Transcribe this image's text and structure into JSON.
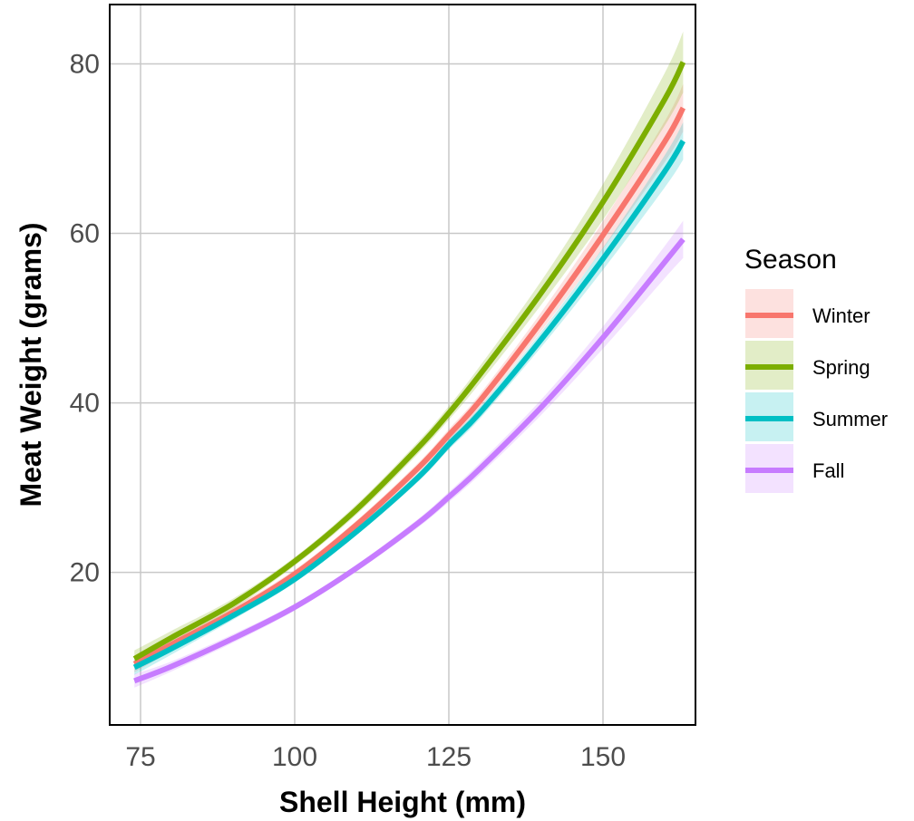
{
  "chart_data": {
    "type": "line",
    "xlabel": "Shell Height (mm)",
    "ylabel": "Meat Weight (grams)",
    "xlim": [
      70,
      165
    ],
    "ylim": [
      2,
      87
    ],
    "xticks": [
      "75",
      "100",
      "125",
      "150"
    ],
    "yticks": [
      "20",
      "40",
      "60",
      "80"
    ],
    "grid": true,
    "legend": {
      "title": "Season",
      "position": "right"
    },
    "x": [
      74,
      80,
      90,
      100,
      110,
      120,
      125,
      130,
      140,
      150,
      160,
      163
    ],
    "series": [
      {
        "name": "Winter",
        "color": "#F8766D",
        "fill": "#F8766D",
        "values": [
          9.2,
          11.5,
          15.3,
          19.8,
          25.6,
          32.3,
          36.2,
          40.2,
          49.6,
          59.8,
          70.8,
          74.8
        ],
        "ci": [
          1.0,
          0.8,
          0.6,
          0.5,
          0.5,
          0.6,
          0.7,
          0.8,
          1.1,
          1.6,
          2.4,
          2.8
        ]
      },
      {
        "name": "Spring",
        "color": "#7CAE00",
        "fill": "#7CAE00",
        "values": [
          9.8,
          12.3,
          16.3,
          21.3,
          27.4,
          34.7,
          38.8,
          43.3,
          53.0,
          63.7,
          75.8,
          80.2
        ],
        "ci": [
          1.0,
          0.8,
          0.6,
          0.5,
          0.6,
          0.7,
          0.8,
          1.0,
          1.4,
          2.1,
          3.1,
          3.6
        ]
      },
      {
        "name": "Summer",
        "color": "#00BFC4",
        "fill": "#00BFC4",
        "values": [
          8.8,
          11.0,
          14.9,
          19.2,
          24.8,
          31.2,
          35.1,
          38.8,
          47.5,
          57.0,
          67.3,
          70.9
        ],
        "ci": [
          0.9,
          0.7,
          0.5,
          0.4,
          0.4,
          0.5,
          0.6,
          0.7,
          0.9,
          1.3,
          1.9,
          2.2
        ]
      },
      {
        "name": "Fall",
        "color": "#C77CFF",
        "fill": "#C77CFF",
        "values": [
          7.2,
          8.9,
          12.2,
          15.9,
          20.5,
          25.8,
          28.9,
          32.2,
          39.5,
          47.7,
          56.6,
          59.3
        ],
        "ci": [
          0.8,
          0.6,
          0.5,
          0.4,
          0.4,
          0.5,
          0.6,
          0.7,
          0.9,
          1.3,
          1.9,
          2.2
        ]
      }
    ]
  }
}
